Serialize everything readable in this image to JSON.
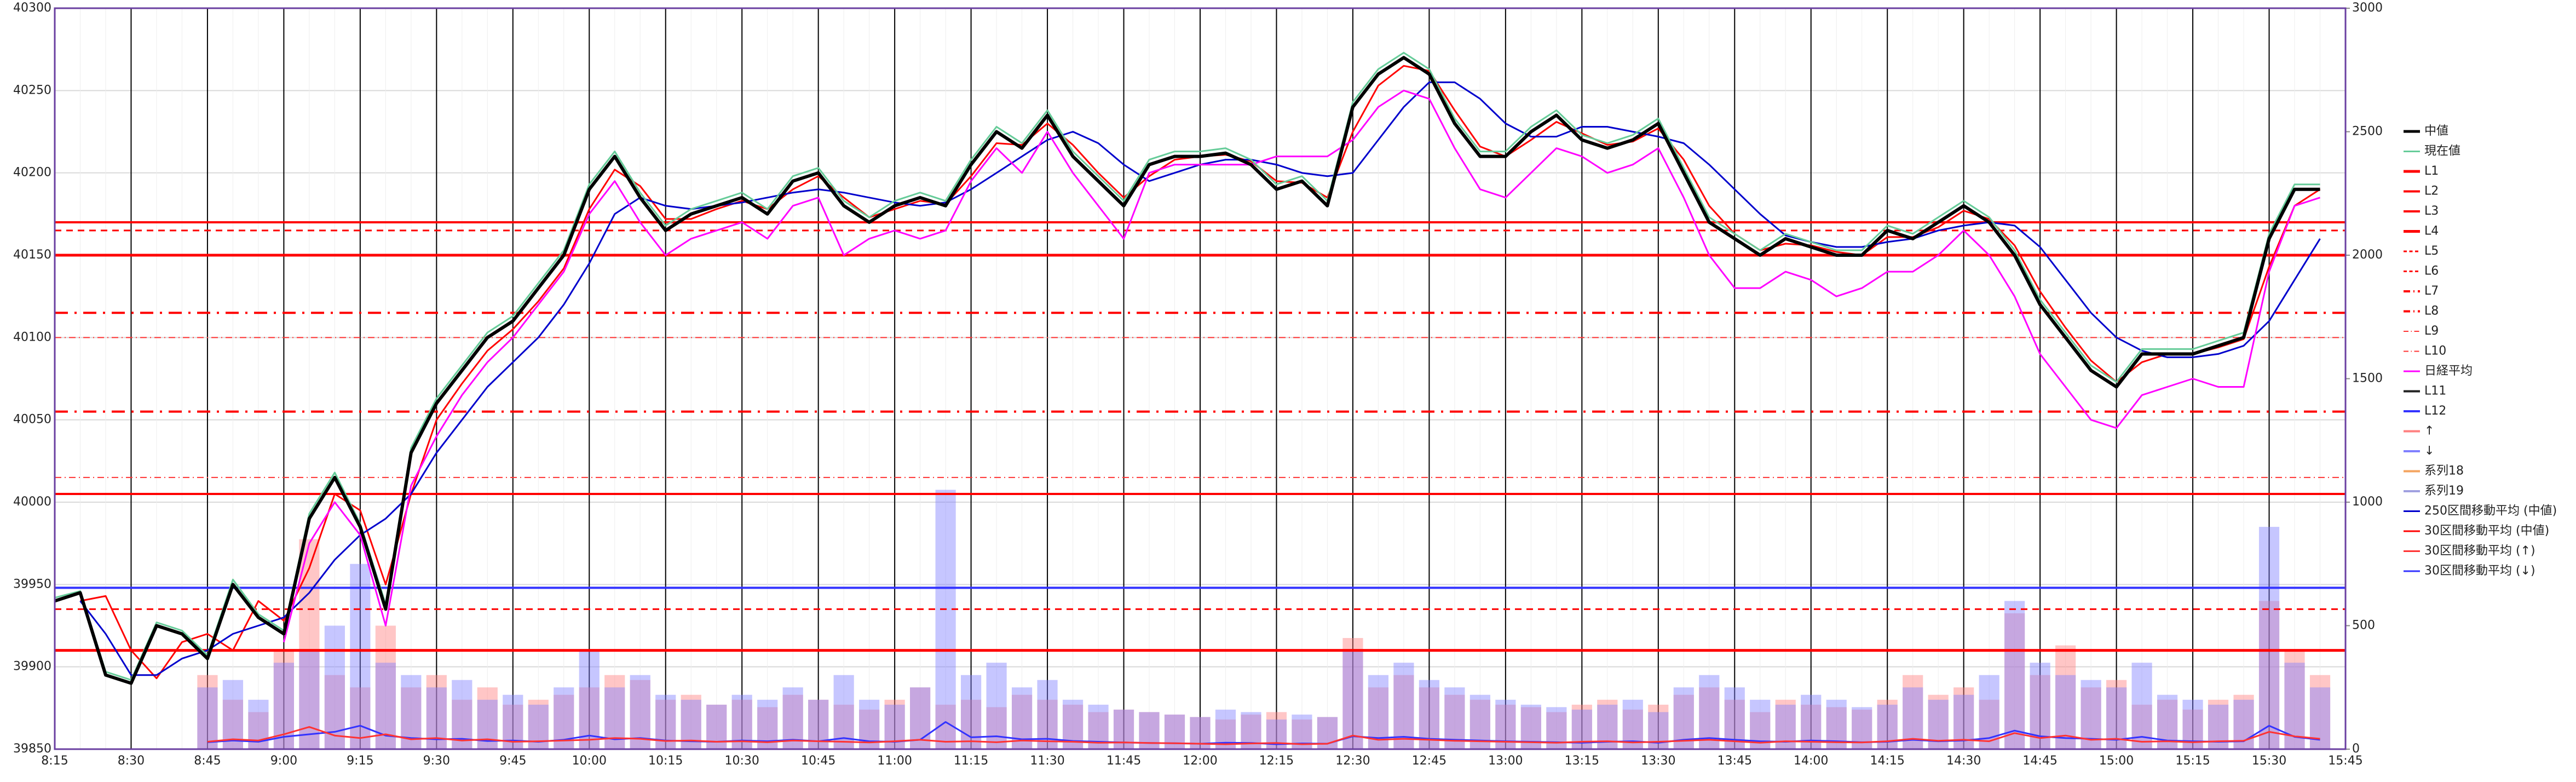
{
  "chart_data": {
    "type": "line",
    "categories": [
      "8:15",
      null,
      null,
      "8:30",
      null,
      null,
      "8:45",
      null,
      null,
      "9:00",
      null,
      null,
      "9:15",
      null,
      null,
      "9:30",
      null,
      null,
      "9:45",
      null,
      null,
      "10:00",
      null,
      null,
      "10:15",
      null,
      null,
      "10:30",
      null,
      null,
      "10:45",
      null,
      null,
      "11:00",
      null,
      null,
      "11:15",
      null,
      null,
      "11:30",
      null,
      null,
      "11:45",
      null,
      null,
      "12:00",
      null,
      null,
      "12:15",
      null,
      null,
      "12:30",
      null,
      null,
      "12:45",
      null,
      null,
      "13:00",
      null,
      null,
      "13:15",
      null,
      null,
      "13:30",
      null,
      null,
      "13:45",
      null,
      null,
      "14:00",
      null,
      null,
      "14:15",
      null,
      null,
      "14:30",
      null,
      null,
      "14:45",
      null,
      null,
      "15:00",
      null,
      null,
      "15:15",
      null,
      null,
      "15:30",
      null,
      null,
      "15:45"
    ],
    "ylim": [
      39850,
      40300
    ],
    "yticks": [
      39850,
      39900,
      39950,
      40000,
      40050,
      40100,
      40150,
      40200,
      40250,
      40300
    ],
    "y2lim": [
      0,
      3000
    ],
    "y2ticks": [
      0,
      500,
      1000,
      1500,
      2000,
      2500,
      3000
    ],
    "grid": true,
    "legend": "right",
    "series": [
      {
        "name": "中値",
        "kind": "line",
        "color": "#000000",
        "width": 6,
        "values": [
          39940,
          39945,
          39895,
          39890,
          39925,
          39920,
          39905,
          39950,
          39930,
          39920,
          39990,
          40015,
          39985,
          39935,
          40030,
          40060,
          40080,
          40100,
          40110,
          40130,
          40150,
          40190,
          40210,
          40185,
          40165,
          40175,
          40180,
          40185,
          40175,
          40195,
          40200,
          40180,
          40170,
          40180,
          40185,
          40180,
          40205,
          40225,
          40215,
          40235,
          40210,
          40195,
          40180,
          40205,
          40210,
          40210,
          40212,
          40205,
          40190,
          40195,
          40180,
          40240,
          40260,
          40270,
          40260,
          40230,
          40210,
          40210,
          40225,
          40235,
          40220,
          40215,
          40220,
          40230,
          40200,
          40170,
          40160,
          40150,
          40160,
          40155,
          40150,
          40150,
          40165,
          40160,
          40170,
          40180,
          40170,
          40150,
          40120,
          40100,
          40080,
          40070,
          40090,
          40090,
          40090,
          40095,
          40100,
          40160,
          40190,
          40190,
          null
        ]
      },
      {
        "name": "現在値",
        "kind": "line",
        "color": "#66cc99",
        "width": 3,
        "values": [
          39942,
          39946,
          39897,
          39892,
          39927,
          39922,
          39907,
          39953,
          39932,
          39922,
          39993,
          40018,
          39987,
          39938,
          40033,
          40063,
          40083,
          40103,
          40113,
          40133,
          40153,
          40193,
          40213,
          40188,
          40168,
          40178,
          40183,
          40188,
          40178,
          40198,
          40203,
          40183,
          40173,
          40183,
          40188,
          40183,
          40208,
          40228,
          40218,
          40238,
          40213,
          40198,
          40183,
          40208,
          40213,
          40213,
          40215,
          40208,
          40193,
          40198,
          40183,
          40243,
          40263,
          40273,
          40263,
          40233,
          40213,
          40213,
          40228,
          40238,
          40223,
          40218,
          40223,
          40233,
          40203,
          40173,
          40163,
          40153,
          40163,
          40158,
          40153,
          40153,
          40168,
          40163,
          40173,
          40183,
          40173,
          40153,
          40123,
          40103,
          40083,
          40073,
          40093,
          40093,
          40093,
          40098,
          40103,
          40163,
          40193,
          40193,
          null
        ]
      },
      {
        "name": "L1",
        "kind": "level",
        "color": "#ff0000",
        "style": "solid",
        "width": 5,
        "level": 40150
      },
      {
        "name": "L2",
        "kind": "level",
        "color": "#ff0000",
        "style": "solid",
        "width": 4,
        "level": 40170
      },
      {
        "name": "L3",
        "kind": "level",
        "color": "#ff0000",
        "style": "solid",
        "width": 4,
        "level": 40005
      },
      {
        "name": "L4",
        "kind": "level",
        "color": "#ff0000",
        "style": "solid",
        "width": 5,
        "level": 39910
      },
      {
        "name": "L5",
        "kind": "level",
        "color": "#ff0000",
        "style": "dash",
        "width": 3,
        "level": 40165
      },
      {
        "name": "L6",
        "kind": "level",
        "color": "#ff0000",
        "style": "dash",
        "width": 3,
        "level": 39935
      },
      {
        "name": "L7",
        "kind": "level",
        "color": "#ff0000",
        "style": "dashdot",
        "width": 4,
        "level": 40115
      },
      {
        "name": "L8",
        "kind": "level",
        "color": "#ff0000",
        "style": "dashdot",
        "width": 4,
        "level": 40055
      },
      {
        "name": "L9",
        "kind": "level",
        "color": "#ff3333",
        "style": "dashdot",
        "width": 2,
        "level": 40100
      },
      {
        "name": "L10",
        "kind": "level",
        "color": "#ff3333",
        "style": "dashdot",
        "width": 2,
        "level": 40015
      },
      {
        "name": "日経平均",
        "kind": "line",
        "color": "#ff00ff",
        "width": 3,
        "values": [
          null,
          null,
          null,
          null,
          null,
          null,
          null,
          null,
          null,
          39915,
          39975,
          40000,
          39980,
          39925,
          40010,
          40040,
          40065,
          40085,
          40100,
          40120,
          40140,
          40175,
          40195,
          40170,
          40150,
          40160,
          40165,
          40170,
          40160,
          40180,
          40185,
          40150,
          40160,
          40165,
          40160,
          40165,
          40195,
          40215,
          40200,
          40225,
          40200,
          40180,
          40160,
          40200,
          40205,
          40205,
          40205,
          40205,
          40210,
          40210,
          40210,
          40220,
          40240,
          40250,
          40245,
          40215,
          40190,
          40185,
          40200,
          40215,
          40210,
          40200,
          40205,
          40215,
          40185,
          40150,
          40130,
          40130,
          40140,
          40135,
          40125,
          40130,
          40140,
          40140,
          40150,
          40165,
          40150,
          40125,
          40090,
          40070,
          40050,
          40045,
          40065,
          40070,
          40075,
          40070,
          40070,
          40140,
          40180,
          40185,
          null
        ]
      },
      {
        "name": "L11",
        "kind": "legend",
        "color": "#222222",
        "style": "solid",
        "width": 4
      },
      {
        "name": "L12",
        "kind": "level",
        "color": "#3333ff",
        "style": "solid",
        "width": 4,
        "level": 39948
      },
      {
        "name": "↑",
        "kind": "bar",
        "axis": "y2",
        "color": "#ff8080",
        "values": [
          null,
          null,
          null,
          null,
          null,
          null,
          300,
          200,
          150,
          400,
          850,
          300,
          250,
          500,
          250,
          300,
          200,
          250,
          180,
          200,
          220,
          250,
          300,
          280,
          200,
          220,
          180,
          200,
          170,
          220,
          200,
          180,
          160,
          200,
          250,
          180,
          200,
          170,
          220,
          200,
          180,
          150,
          160,
          150,
          140,
          130,
          120,
          140,
          150,
          120,
          130,
          450,
          250,
          300,
          250,
          220,
          200,
          180,
          170,
          150,
          180,
          200,
          160,
          180,
          220,
          250,
          200,
          150,
          200,
          180,
          170,
          160,
          200,
          300,
          220,
          250,
          200,
          550,
          300,
          420,
          250,
          280,
          180,
          200,
          160,
          200,
          220,
          600,
          400,
          300,
          null
        ]
      },
      {
        "name": "↓",
        "kind": "bar",
        "axis": "y2",
        "color": "#8080ff",
        "values": [
          null,
          null,
          null,
          null,
          null,
          null,
          250,
          280,
          200,
          350,
          400,
          500,
          750,
          350,
          300,
          250,
          280,
          200,
          220,
          180,
          250,
          400,
          250,
          300,
          220,
          200,
          180,
          220,
          200,
          250,
          200,
          300,
          200,
          180,
          250,
          1050,
          300,
          350,
          250,
          280,
          200,
          180,
          160,
          150,
          140,
          130,
          160,
          150,
          120,
          140,
          130,
          400,
          300,
          350,
          280,
          250,
          220,
          200,
          180,
          170,
          160,
          180,
          200,
          150,
          250,
          300,
          250,
          200,
          180,
          220,
          200,
          170,
          180,
          250,
          200,
          220,
          300,
          600,
          350,
          300,
          280,
          250,
          350,
          220,
          200,
          180,
          200,
          900,
          350,
          250,
          null
        ]
      },
      {
        "name": "系列18",
        "kind": "legend",
        "color": "#f4a460",
        "style": "solid",
        "width": 4
      },
      {
        "name": "系列19",
        "kind": "legend",
        "color": "#a0a0e0",
        "style": "solid",
        "width": 4
      },
      {
        "name": "250区間移動平均 (中値)",
        "kind": "line",
        "color": "#0000cc",
        "width": 3,
        "values": [
          null,
          39940,
          39920,
          39895,
          39895,
          39905,
          39910,
          39920,
          39925,
          39930,
          39945,
          39965,
          39980,
          39990,
          40005,
          40030,
          40050,
          40070,
          40085,
          40100,
          40120,
          40145,
          40175,
          40185,
          40180,
          40178,
          40180,
          40182,
          40185,
          40188,
          40190,
          40188,
          40185,
          40182,
          40180,
          40182,
          40190,
          40200,
          40210,
          40220,
          40225,
          40218,
          40205,
          40195,
          40200,
          40205,
          40208,
          40208,
          40205,
          40200,
          40198,
          40200,
          40220,
          40240,
          40255,
          40255,
          40245,
          40230,
          40222,
          40222,
          40228,
          40228,
          40225,
          40222,
          40218,
          40205,
          40190,
          40175,
          40162,
          40158,
          40155,
          40155,
          40158,
          40160,
          40165,
          40168,
          40170,
          40168,
          40155,
          40135,
          40115,
          40100,
          40092,
          40088,
          40088,
          40090,
          40095,
          40110,
          40135,
          40160,
          null
        ]
      },
      {
        "name": "30区間移動平均 (中値)",
        "kind": "line",
        "color": "#ff0000",
        "width": 3,
        "values": [
          null,
          39940,
          39943,
          39910,
          39893,
          39915,
          39920,
          39910,
          39940,
          39928,
          39960,
          40005,
          39995,
          39950,
          40005,
          40050,
          40072,
          40092,
          40105,
          40122,
          40142,
          40178,
          40202,
          40192,
          40172,
          40172,
          40178,
          40183,
          40178,
          40190,
          40198,
          40185,
          40173,
          40178,
          40183,
          40181,
          40198,
          40218,
          40217,
          40230,
          40217,
          40200,
          40185,
          40198,
          40208,
          40210,
          40211,
          40207,
          40195,
          40194,
          40185,
          40225,
          40253,
          40265,
          40262,
          40238,
          40216,
          40210,
          40220,
          40231,
          40224,
          40217,
          40219,
          40227,
          40208,
          40180,
          40163,
          40153,
          40157,
          40156,
          40152,
          40150,
          40161,
          40161,
          40167,
          40177,
          40172,
          40156,
          40128,
          40106,
          40086,
          40073,
          40085,
          40090,
          40090,
          40094,
          40099,
          40143,
          40180,
          40190,
          null
        ]
      },
      {
        "name": "30区間移動平均 (↑)",
        "kind": "line",
        "axis": "y2",
        "color": "#ff3333",
        "width": 3,
        "values": [
          null,
          null,
          null,
          null,
          null,
          null,
          30,
          40,
          35,
          60,
          90,
          55,
          45,
          60,
          40,
          45,
          35,
          40,
          30,
          32,
          35,
          38,
          45,
          42,
          33,
          35,
          30,
          32,
          28,
          35,
          32,
          30,
          27,
          32,
          38,
          30,
          32,
          28,
          35,
          32,
          30,
          26,
          27,
          25,
          24,
          22,
          20,
          23,
          25,
          20,
          22,
          55,
          38,
          42,
          38,
          34,
          32,
          30,
          28,
          26,
          30,
          32,
          27,
          30,
          34,
          38,
          32,
          26,
          32,
          30,
          28,
          27,
          32,
          42,
          34,
          38,
          32,
          65,
          45,
          55,
          38,
          42,
          30,
          32,
          28,
          32,
          34,
          70,
          52,
          42,
          null
        ]
      },
      {
        "name": "30区間移動平均 (↓)",
        "kind": "line",
        "axis": "y2",
        "color": "#3333ff",
        "width": 3,
        "values": [
          null,
          null,
          null,
          null,
          null,
          null,
          28,
          35,
          30,
          50,
          60,
          70,
          95,
          55,
          45,
          40,
          42,
          33,
          35,
          30,
          38,
          55,
          40,
          45,
          35,
          32,
          30,
          35,
          32,
          38,
          32,
          45,
          32,
          30,
          38,
          110,
          48,
          52,
          40,
          42,
          33,
          30,
          27,
          25,
          24,
          22,
          26,
          25,
          20,
          23,
          22,
          52,
          45,
          50,
          42,
          38,
          35,
          32,
          30,
          28,
          26,
          30,
          32,
          26,
          38,
          45,
          38,
          32,
          30,
          35,
          32,
          28,
          30,
          38,
          32,
          35,
          45,
          75,
          52,
          45,
          42,
          38,
          50,
          35,
          32,
          30,
          32,
          95,
          50,
          38,
          null
        ]
      }
    ]
  }
}
